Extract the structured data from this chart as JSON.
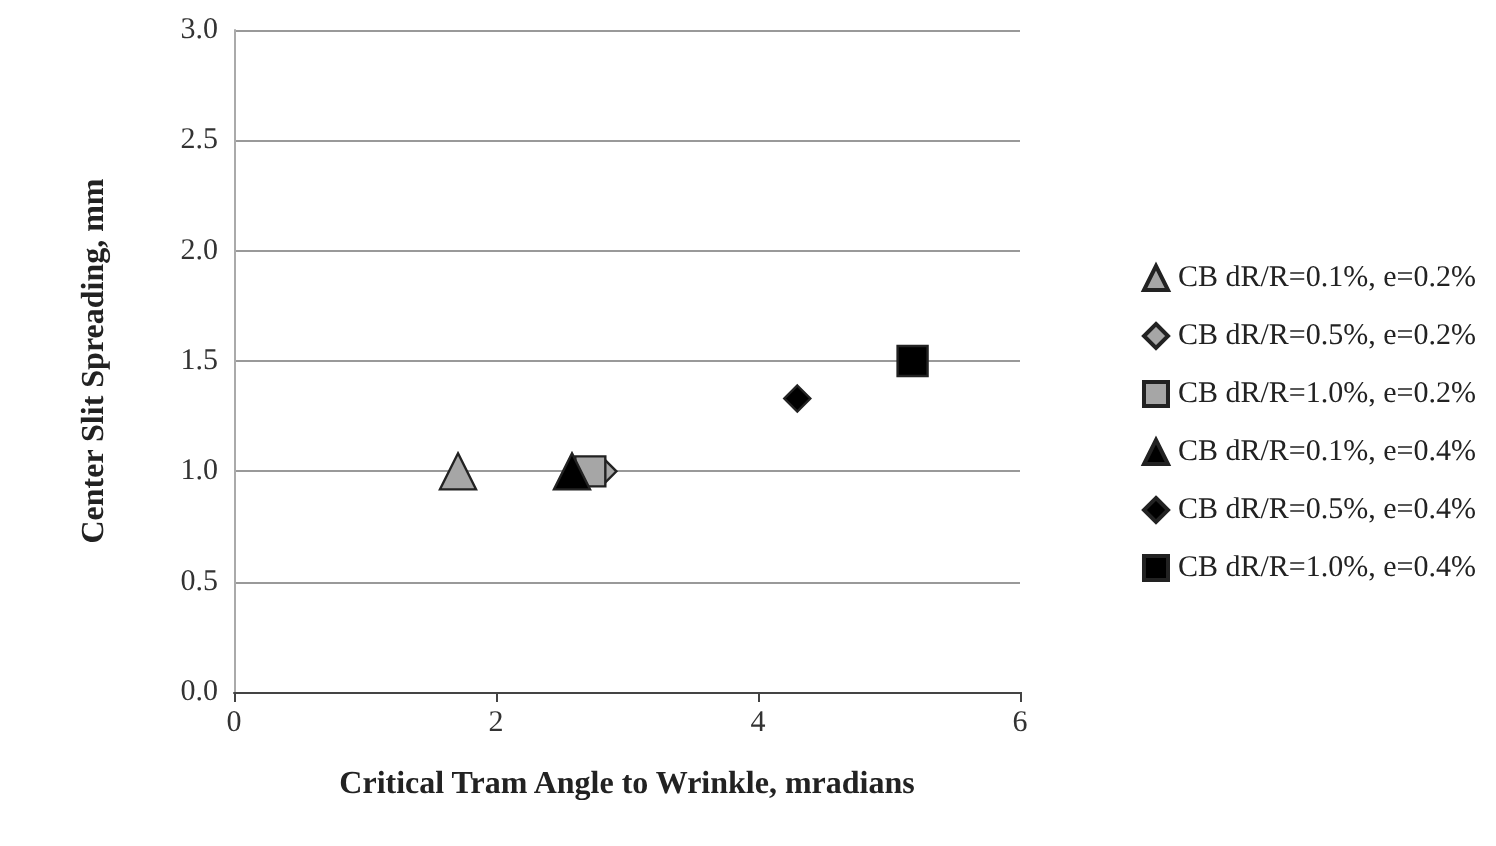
{
  "chart_data": {
    "type": "scatter",
    "xlabel": "Critical Tram Angle to Wrinkle, mradians",
    "ylabel": "Center Slit Spreading, mm",
    "xlim": [
      0,
      6
    ],
    "xticks": [
      0,
      2,
      4,
      6
    ],
    "ylim": [
      0,
      3
    ],
    "yticks": [
      {
        "value": 0,
        "label": "0.0"
      },
      {
        "value": 0.5,
        "label": "0.5"
      },
      {
        "value": 1,
        "label": "1.0"
      },
      {
        "value": 1.5,
        "label": "1.5"
      },
      {
        "value": 2,
        "label": "2.0"
      },
      {
        "value": 2.5,
        "label": "2.5"
      },
      {
        "value": 3,
        "label": "3.0"
      }
    ],
    "grid": "y",
    "legend": "right",
    "series": [
      {
        "name": "CB dR/R=0.1%, e=0.2%",
        "color": "#a6a6a6",
        "marker": "triangle",
        "x": [
          1.71
        ],
        "values": [
          1.0
        ]
      },
      {
        "name": "CB dR/R=0.5%, e=0.2%",
        "color": "#a6a6a6",
        "marker": "diamond",
        "x": [
          2.82
        ],
        "values": [
          1.0
        ]
      },
      {
        "name": "CB dR/R=1.0%, e=0.2%",
        "color": "#a6a6a6",
        "marker": "square",
        "x": [
          2.72
        ],
        "values": [
          1.0
        ]
      },
      {
        "name": "CB dR/R=0.1%, e=0.4%",
        "color": "#000000",
        "marker": "triangle",
        "x": [
          2.58
        ],
        "values": [
          1.0
        ]
      },
      {
        "name": "CB dR/R=0.5%, e=0.4%",
        "color": "#000000",
        "marker": "diamond",
        "x": [
          4.3
        ],
        "values": [
          1.33
        ]
      },
      {
        "name": "CB dR/R=1.0%, e=0.4%",
        "color": "#000000",
        "marker": "square",
        "x": [
          5.18
        ],
        "values": [
          1.5
        ]
      }
    ]
  }
}
